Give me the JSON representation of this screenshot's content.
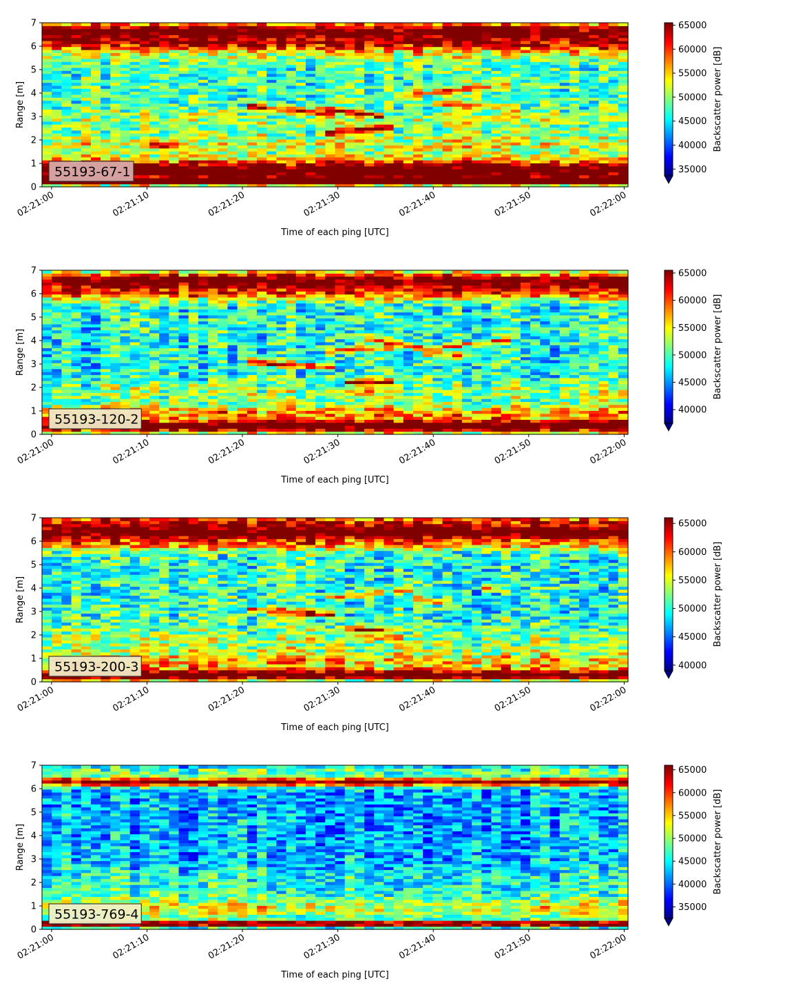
{
  "chart_data": [
    {
      "type": "heatmap",
      "label": "55193-67-1",
      "xlabel": "Time of each ping [UTC]",
      "ylabel": "Range [m]",
      "xticks": [
        "02:21:00",
        "02:21:10",
        "02:21:20",
        "02:21:30",
        "02:21:40",
        "02:21:50",
        "02:22:00"
      ],
      "yticks": [
        "0",
        "1",
        "2",
        "3",
        "4",
        "5",
        "6",
        "7"
      ],
      "ylim": [
        0,
        7
      ],
      "colorbar": {
        "label": "Backscatter power [dB]",
        "ticks": [
          "35000",
          "40000",
          "45000",
          "50000",
          "55000",
          "60000",
          "65000"
        ],
        "range": [
          33600,
          65500
        ],
        "extend": "min"
      },
      "colormap": "jet",
      "label_box_color": "#d9a9a9",
      "seed": 11,
      "profile": {
        "floor": 0.45,
        "noise": 0.17,
        "bands": [
          {
            "c": 0.7,
            "w": 0.45,
            "a": 0.72
          },
          {
            "c": 0.25,
            "w": 0.12,
            "a": 0.8
          },
          {
            "c": 6.6,
            "w": 0.38,
            "a": 0.7
          },
          {
            "c": 6.05,
            "w": 0.25,
            "a": 0.38
          },
          {
            "c": 5.6,
            "w": 0.3,
            "a": 0.12
          },
          {
            "c": 1.85,
            "w": 0.45,
            "a": 0.16
          },
          {
            "c": 2.9,
            "w": 0.4,
            "a": 0.1
          }
        ],
        "streaks": [
          {
            "t0": 21,
            "t1": 30,
            "r0": 3.45,
            "r1": 3.1,
            "a": 0.45
          },
          {
            "t0": 29,
            "t1": 36,
            "r0": 2.3,
            "r1": 2.6,
            "a": 0.48
          },
          {
            "t0": 28,
            "t1": 35,
            "r0": 3.4,
            "r1": 3.0,
            "a": 0.38
          },
          {
            "t0": 36,
            "t1": 48,
            "r0": 3.9,
            "r1": 4.4,
            "a": 0.32
          },
          {
            "t0": 10,
            "t1": 13,
            "r0": 1.8,
            "r1": 1.8,
            "a": 0.35
          },
          {
            "t0": 40,
            "t1": 49,
            "r0": 3.6,
            "r1": 3.3,
            "a": 0.2
          }
        ]
      }
    },
    {
      "type": "heatmap",
      "label": "55193-120-2",
      "xlabel": "Time of each ping [UTC]",
      "ylabel": "Range [m]",
      "xticks": [
        "02:21:00",
        "02:21:10",
        "02:21:20",
        "02:21:30",
        "02:21:40",
        "02:21:50",
        "02:22:00"
      ],
      "yticks": [
        "0",
        "1",
        "2",
        "3",
        "4",
        "5",
        "6",
        "7"
      ],
      "ylim": [
        0,
        7
      ],
      "colorbar": {
        "label": "Backscatter power [dB]",
        "ticks": [
          "40000",
          "45000",
          "50000",
          "55000",
          "60000",
          "65000"
        ],
        "range": [
          37500,
          65500
        ],
        "extend": "min"
      },
      "colormap": "jet",
      "label_box_color": "#f0e7c6",
      "seed": 22,
      "profile": {
        "floor": 0.4,
        "noise": 0.17,
        "bands": [
          {
            "c": 0.35,
            "w": 0.25,
            "a": 0.75
          },
          {
            "c": 0.9,
            "w": 0.35,
            "a": 0.3
          },
          {
            "c": 6.55,
            "w": 0.35,
            "a": 0.7
          },
          {
            "c": 6.0,
            "w": 0.3,
            "a": 0.35
          },
          {
            "c": 1.8,
            "w": 0.5,
            "a": 0.12
          }
        ],
        "streaks": [
          {
            "t0": 21,
            "t1": 30,
            "r0": 3.1,
            "r1": 2.85,
            "a": 0.5
          },
          {
            "t0": 31,
            "t1": 36,
            "r0": 2.25,
            "r1": 2.2,
            "a": 0.5
          },
          {
            "t0": 29,
            "t1": 36,
            "r0": 3.6,
            "r1": 3.7,
            "a": 0.35
          },
          {
            "t0": 33,
            "t1": 40,
            "r0": 4.1,
            "r1": 3.6,
            "a": 0.38
          },
          {
            "t0": 40,
            "t1": 48,
            "r0": 3.7,
            "r1": 4.05,
            "a": 0.38
          },
          {
            "t0": 39,
            "t1": 44,
            "r0": 3.5,
            "r1": 3.35,
            "a": 0.3
          },
          {
            "t0": 30,
            "t1": 37,
            "r0": 1.7,
            "r1": 1.9,
            "a": 0.2
          }
        ]
      }
    },
    {
      "type": "heatmap",
      "label": "55193-200-3",
      "xlabel": "Time of each ping [UTC]",
      "ylabel": "Range [m]",
      "xticks": [
        "02:21:00",
        "02:21:10",
        "02:21:20",
        "02:21:30",
        "02:21:40",
        "02:21:50",
        "02:22:00"
      ],
      "yticks": [
        "0",
        "1",
        "2",
        "3",
        "4",
        "5",
        "6",
        "7"
      ],
      "ylim": [
        0,
        7
      ],
      "colorbar": {
        "label": "Backscatter power [dB]",
        "ticks": [
          "40000",
          "45000",
          "50000",
          "55000",
          "60000",
          "65000"
        ],
        "range": [
          39000,
          66000
        ],
        "extend": "min"
      },
      "colormap": "jet",
      "label_box_color": "#f0e7c6",
      "seed": 33,
      "profile": {
        "floor": 0.42,
        "noise": 0.18,
        "bands": [
          {
            "c": 0.3,
            "w": 0.2,
            "a": 0.75
          },
          {
            "c": 0.85,
            "w": 0.45,
            "a": 0.28
          },
          {
            "c": 6.4,
            "w": 0.3,
            "a": 0.72
          },
          {
            "c": 6.85,
            "w": 0.25,
            "a": 0.4
          },
          {
            "c": 5.9,
            "w": 0.3,
            "a": 0.3
          },
          {
            "c": 1.8,
            "w": 0.5,
            "a": 0.12
          }
        ],
        "streaks": [
          {
            "t0": 21,
            "t1": 30,
            "r0": 3.1,
            "r1": 2.85,
            "a": 0.45
          },
          {
            "t0": 31,
            "t1": 36,
            "r0": 2.25,
            "r1": 2.2,
            "a": 0.45
          },
          {
            "t0": 29,
            "t1": 38,
            "r0": 3.6,
            "r1": 3.95,
            "a": 0.32
          },
          {
            "t0": 38,
            "t1": 42,
            "r0": 3.6,
            "r1": 3.3,
            "a": 0.3
          },
          {
            "t0": 45,
            "t1": 47,
            "r0": 4.0,
            "r1": 4.0,
            "a": 0.3
          },
          {
            "t0": 31,
            "t1": 37,
            "r0": 1.9,
            "r1": 1.9,
            "a": 0.15
          }
        ]
      }
    },
    {
      "type": "heatmap",
      "label": "55193-769-4",
      "xlabel": "Time of each ping [UTC]",
      "ylabel": "Range [m]",
      "xticks": [
        "02:21:00",
        "02:21:10",
        "02:21:20",
        "02:21:30",
        "02:21:40",
        "02:21:50",
        "02:22:00"
      ],
      "yticks": [
        "0",
        "1",
        "2",
        "3",
        "4",
        "5",
        "6",
        "7"
      ],
      "ylim": [
        0,
        7
      ],
      "colorbar": {
        "label": "Backscatter power [dB]",
        "ticks": [
          "35000",
          "40000",
          "45000",
          "50000",
          "55000",
          "60000",
          "65000"
        ],
        "range": [
          32500,
          66000
        ],
        "extend": "min"
      },
      "colormap": "jet",
      "label_box_color": "#f0f0c6",
      "seed": 44,
      "profile": {
        "floor": 0.3,
        "noise": 0.15,
        "bands": [
          {
            "c": 0.25,
            "w": 0.12,
            "a": 0.82
          },
          {
            "c": 0.9,
            "w": 0.5,
            "a": 0.3
          },
          {
            "c": 6.3,
            "w": 0.18,
            "a": 0.75
          },
          {
            "c": 6.75,
            "w": 0.2,
            "a": 0.18
          },
          {
            "c": 2.0,
            "w": 0.7,
            "a": 0.1
          }
        ],
        "streaks": []
      }
    }
  ]
}
